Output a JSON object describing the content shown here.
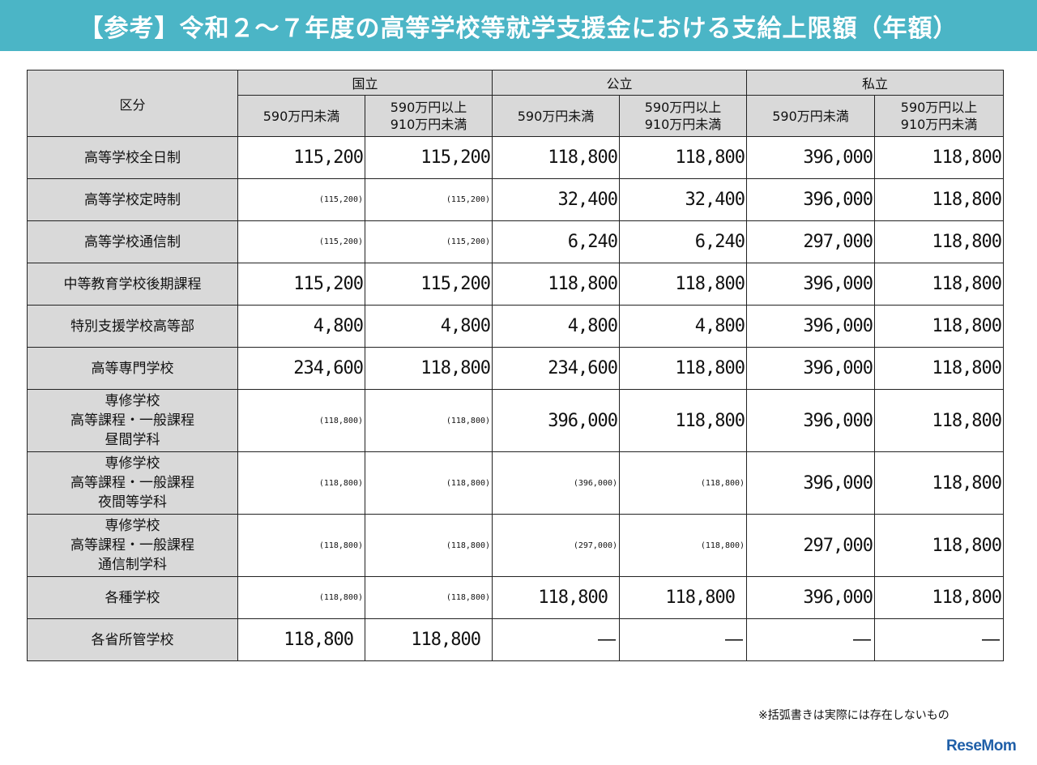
{
  "title": "【参考】令和２～７年度の高等学校等就学支援金における支給上限額（年額）",
  "table": {
    "corner_label": "区分",
    "groups": [
      "国立",
      "公立",
      "私立"
    ],
    "subheaders": [
      [
        "590万円未満"
      ],
      [
        "590万円以上",
        "910万円未満"
      ],
      [
        "590万円未満"
      ],
      [
        "590万円以上",
        "910万円未満"
      ],
      [
        "590万円未満"
      ],
      [
        "590万円以上",
        "910万円未満"
      ]
    ],
    "rows": [
      {
        "label": [
          "高等学校全日制"
        ],
        "values": [
          "115,200",
          "115,200",
          "118,800",
          "118,800",
          "396,000",
          "118,800"
        ]
      },
      {
        "label": [
          "高等学校定時制"
        ],
        "values": [
          "(115,200)",
          "(115,200)",
          "32,400",
          "32,400",
          "396,000",
          "118,800"
        ]
      },
      {
        "label": [
          "高等学校通信制"
        ],
        "values": [
          "(115,200)",
          "(115,200)",
          "6,240",
          "6,240",
          "297,000",
          "118,800"
        ]
      },
      {
        "label": [
          "中等教育学校後期課程"
        ],
        "values": [
          "115,200",
          "115,200",
          "118,800",
          "118,800",
          "396,000",
          "118,800"
        ]
      },
      {
        "label": [
          "特別支援学校高等部"
        ],
        "values": [
          "4,800",
          "4,800",
          "4,800",
          "4,800",
          "396,000",
          "118,800"
        ]
      },
      {
        "label": [
          "高等専門学校"
        ],
        "values": [
          "234,600",
          "118,800",
          "234,600",
          "118,800",
          "396,000",
          "118,800"
        ]
      },
      {
        "label": [
          "専修学校",
          "高等課程・一般課程",
          "昼間学科"
        ],
        "values": [
          "(118,800)",
          "(118,800)",
          "396,000",
          "118,800",
          "396,000",
          "118,800"
        ]
      },
      {
        "label": [
          "専修学校",
          "高等課程・一般課程",
          "夜間等学科"
        ],
        "values": [
          "(118,800)",
          "(118,800)",
          "(396,000)",
          "(118,800)",
          "396,000",
          "118,800"
        ]
      },
      {
        "label": [
          "専修学校",
          "高等課程・一般課程",
          "通信制学科"
        ],
        "values": [
          "(118,800)",
          "(118,800)",
          "(297,000)",
          "(118,800)",
          "297,000",
          "118,800"
        ]
      },
      {
        "label": [
          "各種学校"
        ],
        "values": [
          "(118,800)",
          "(118,800)",
          "118,800",
          "118,800",
          "396,000",
          "118,800"
        ]
      },
      {
        "label": [
          "各省所管学校"
        ],
        "values": [
          "118,800",
          "118,800",
          "―",
          "―",
          "―",
          "―"
        ]
      }
    ]
  },
  "note": "※括弧書きは実際には存在しないもの",
  "logo": "ReseMom",
  "colors": {
    "title_bg": "#4bb5c6",
    "header_bg": "#d9d9d9",
    "logo": "#1f5fa8"
  }
}
